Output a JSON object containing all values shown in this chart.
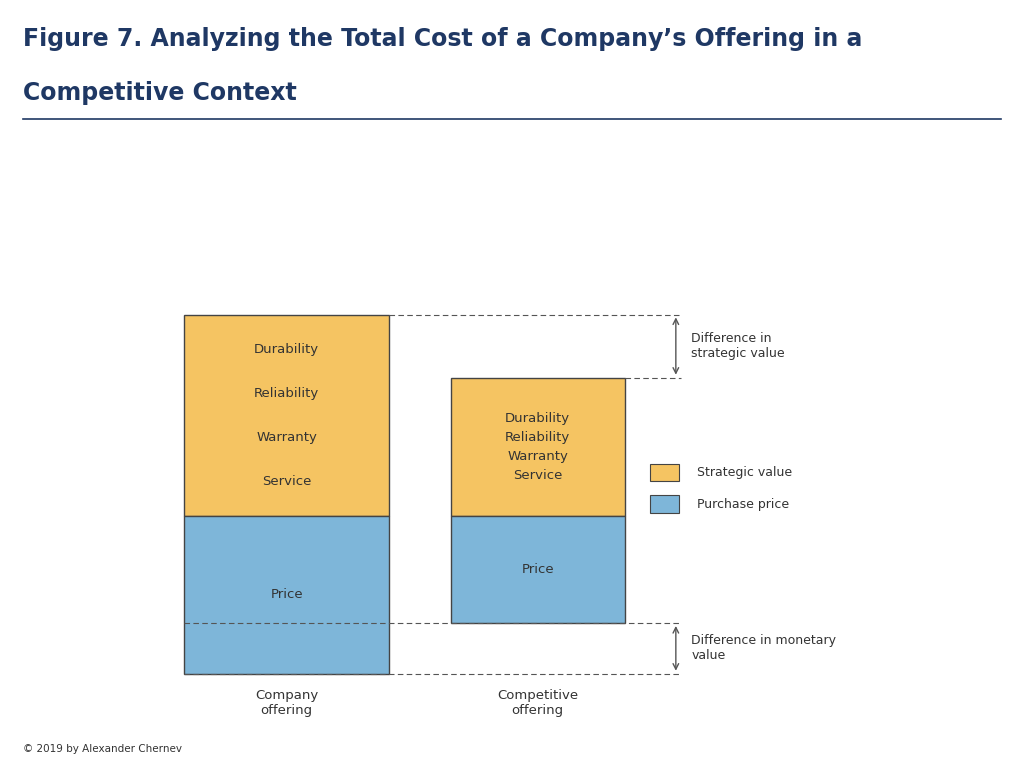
{
  "title_line1": "Figure 7. Analyzing the Total Cost of a Company’s Offering in a",
  "title_line2": "Competitive Context",
  "title_color": "#1F3864",
  "title_fontsize": 17,
  "background_color": "#ffffff",
  "gold_color": "#F5C462",
  "blue_color": "#7EB6D9",
  "border_color": "#444444",
  "text_color": "#333333",
  "line_color": "#555555",
  "copyright_text": "© 2019 by Alexander Chernev",
  "company_gold_text": "Durability\n\nReliability\n\nWarranty\n\nService",
  "comp_gold_text": "Durability\nReliability\nWarranty\nService",
  "price_label": "Price",
  "company_label": "Company\noffering",
  "comp_label": "Competitive\noffering",
  "legend_gold_label": "Strategic value",
  "legend_blue_label": "Purchase price",
  "diff_strategic_label": "Difference in\nstrategic value",
  "diff_monetary_label": "Difference in monetary\nvalue"
}
